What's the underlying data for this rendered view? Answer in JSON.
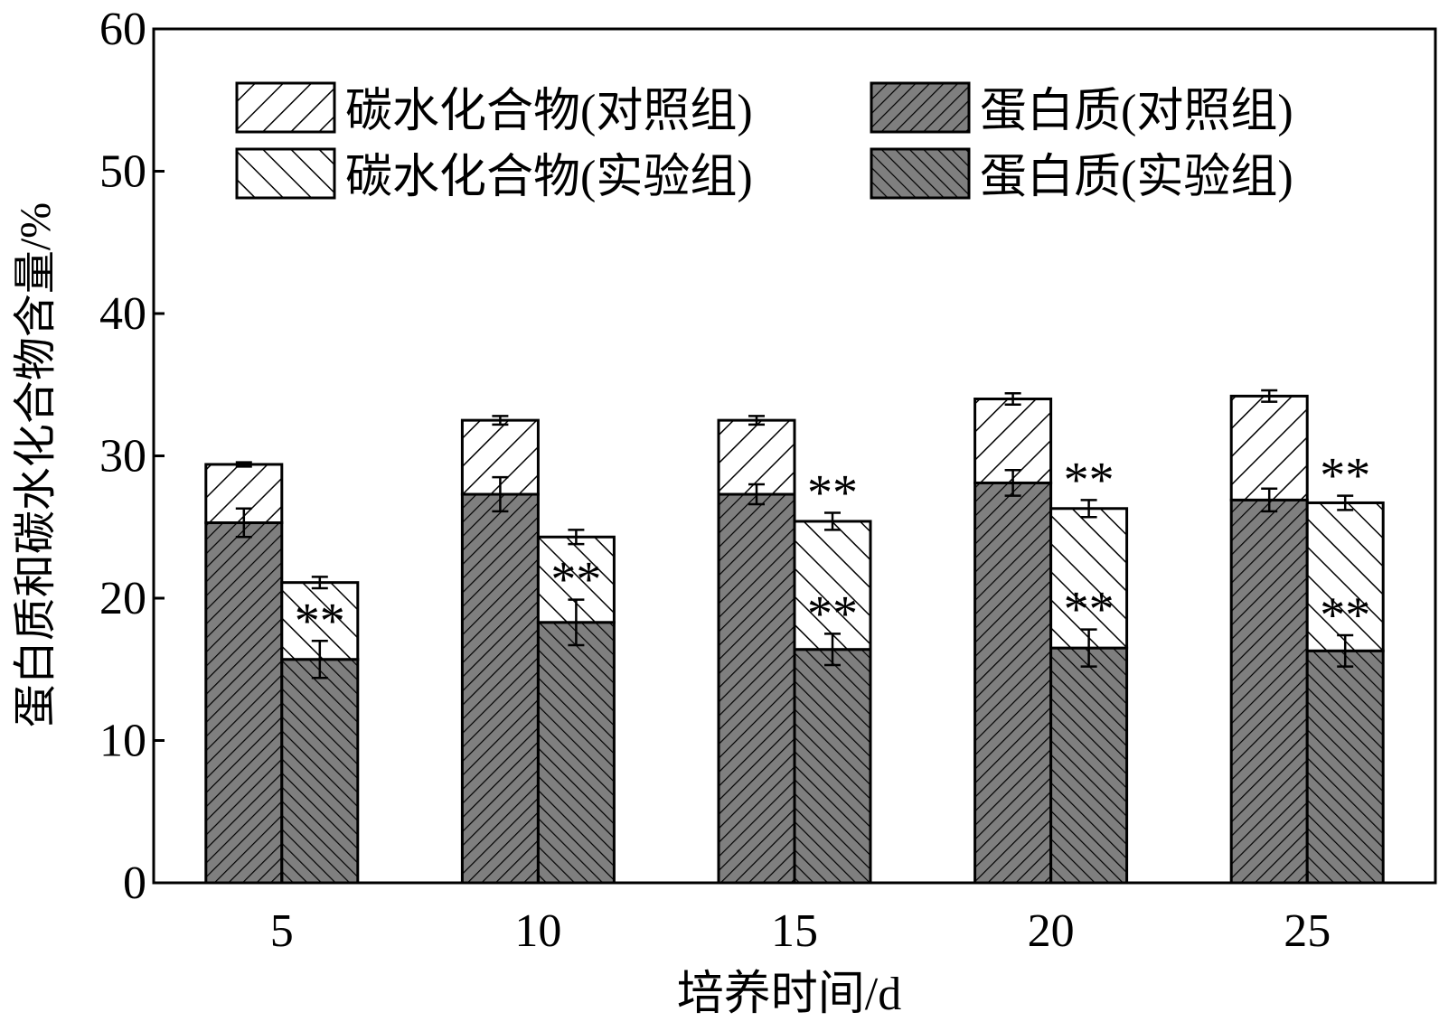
{
  "chart_data": {
    "type": "bar",
    "stacked": true,
    "grouped": true,
    "xlabel": "培养时间/d",
    "ylabel": "蛋白质和碳水化合物含量/%",
    "ylim": [
      0,
      60
    ],
    "yticks": [
      "0",
      "10",
      "20",
      "30",
      "40",
      "50",
      "60"
    ],
    "categories": [
      "5",
      "10",
      "15",
      "20",
      "25"
    ],
    "legend": {
      "position": "top",
      "entries": [
        {
          "key": "carb_control",
          "label": "碳水化合物(对照组)"
        },
        {
          "key": "protein_control",
          "label": "蛋白质(对照组)"
        },
        {
          "key": "carb_experiment",
          "label": "碳水化合物(实验组)"
        },
        {
          "key": "protein_experiment",
          "label": "蛋白质(实验组)"
        }
      ]
    },
    "groups": [
      {
        "name": "对照组",
        "protein": [
          25.3,
          27.3,
          27.3,
          28.1,
          26.9
        ],
        "protein_err": [
          1.0,
          1.2,
          0.7,
          0.9,
          0.8
        ],
        "total": [
          29.4,
          32.5,
          32.5,
          34.0,
          34.2
        ],
        "total_err": [
          0.15,
          0.3,
          0.3,
          0.4,
          0.4
        ],
        "protein_sig": [
          "",
          "",
          "",
          "",
          ""
        ],
        "total_sig": [
          "",
          "",
          "",
          "",
          ""
        ]
      },
      {
        "name": "实验组",
        "protein": [
          15.7,
          18.3,
          16.4,
          16.5,
          16.3
        ],
        "protein_err": [
          1.3,
          1.6,
          1.1,
          1.3,
          1.1
        ],
        "total": [
          21.1,
          24.3,
          25.4,
          26.3,
          26.7
        ],
        "total_err": [
          0.4,
          0.5,
          0.6,
          0.6,
          0.5
        ],
        "protein_sig": [
          "**",
          "**",
          "**",
          "**",
          "**"
        ],
        "total_sig": [
          "",
          "",
          "**",
          "**",
          "**"
        ]
      }
    ],
    "colors": {
      "protein_fill": "#7f7f7f",
      "carb_fill": "#ffffff",
      "line": "#000000"
    }
  }
}
